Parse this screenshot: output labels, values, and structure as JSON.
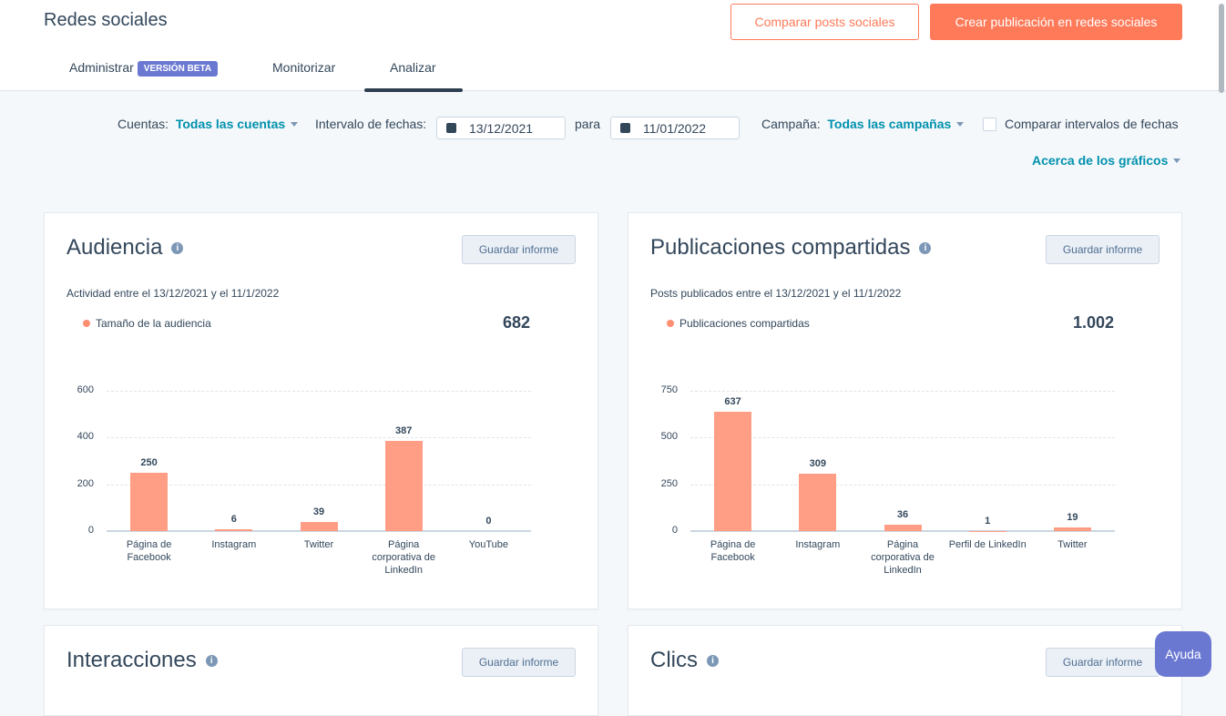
{
  "header": {
    "title": "Redes sociales",
    "compare_button": "Comparar posts sociales",
    "create_button": "Crear publicación en redes sociales"
  },
  "tabs": [
    {
      "label": "Administrar",
      "badge": "VERSIÓN BETA"
    },
    {
      "label": "Monitorizar"
    },
    {
      "label": "Analizar",
      "active": true
    }
  ],
  "filters": {
    "accounts_label": "Cuentas:",
    "accounts_value": "Todas las cuentas",
    "date_label": "Intervalo de fechas:",
    "date_from": "13/12/2021",
    "to_label": "para",
    "date_to": "11/01/2022",
    "campaign_label": "Campaña:",
    "campaign_value": "Todas las campañas",
    "compare_label": "Comparar intervalos de fechas",
    "compare_checked": false,
    "about_charts": "Acerca de los gráficos"
  },
  "cards": [
    {
      "title": "Audiencia",
      "save": "Guardar informe",
      "subtitle": "Actividad entre el 13/12/2021 y el 11/1/2022",
      "legend": "Tamaño de la audiencia",
      "total": "682"
    },
    {
      "title": "Publicaciones compartidas",
      "save": "Guardar informe",
      "subtitle": "Posts publicados entre el 13/12/2021 y el 11/1/2022",
      "legend": "Publicaciones compartidas",
      "total": "1.002"
    },
    {
      "title": "Interacciones",
      "save": "Guardar informe"
    },
    {
      "title": "Clics",
      "save": "Guardar informe"
    }
  ],
  "help": "Ayuda",
  "chart_data": [
    {
      "type": "bar",
      "categories": [
        "Página de Facebook",
        "Instagram",
        "Twitter",
        "Página corporativa de LinkedIn",
        "YouTube"
      ],
      "values": [
        250,
        6,
        39,
        387,
        0
      ],
      "yticks": [
        "0",
        "200",
        "400",
        "600"
      ],
      "ylim": [
        0,
        600
      ],
      "grid": true,
      "series": [
        {
          "name": "Tamaño de la audiencia",
          "color": "#ff9e85"
        }
      ]
    },
    {
      "type": "bar",
      "categories": [
        "Página de Facebook",
        "Instagram",
        "Página corporativa de LinkedIn",
        "Perfil de LinkedIn",
        "Twitter"
      ],
      "values": [
        637,
        309,
        36,
        1,
        19
      ],
      "yticks": [
        "0",
        "250",
        "500",
        "750"
      ],
      "ylim": [
        0,
        750
      ],
      "grid": true,
      "series": [
        {
          "name": "Publicaciones compartidas",
          "color": "#ff9e85"
        }
      ]
    }
  ]
}
